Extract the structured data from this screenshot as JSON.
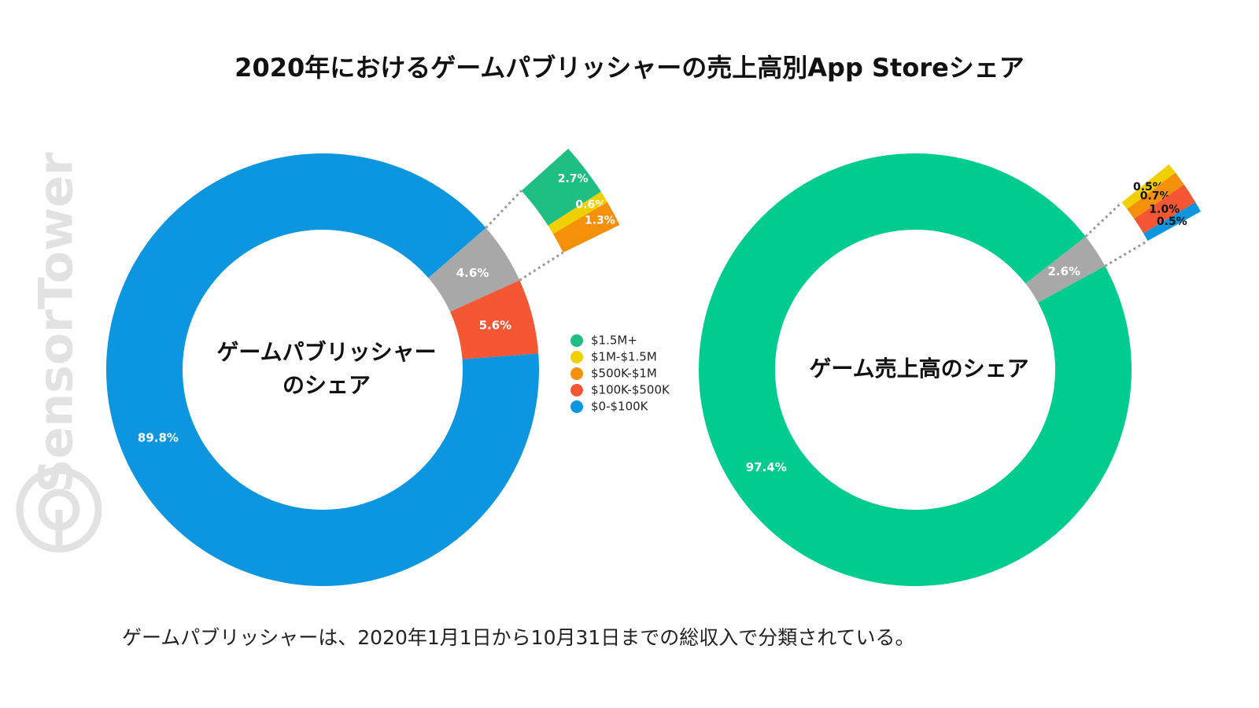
{
  "title": "2020年におけるゲームパブリッシャーの売上高別App Storeシェア",
  "watermark": "SensorTower",
  "footnote": "ゲームパブリッシャーは、2020年1月1日から10月31日までの総収入で分類されている。",
  "chart_data": [
    {
      "type": "donut",
      "center_label": [
        "ゲームパブリッシャー",
        "のシェア"
      ],
      "values": [
        5.6,
        89.8
      ],
      "value_labels": [
        "5.6%",
        "89.8%"
      ],
      "colors": [
        "#f55634",
        "#0c96e0"
      ],
      "detail": {
        "total": 4.6,
        "total_label": "4.6%",
        "total_color": "#a8a8a8",
        "values": [
          2.7,
          0.6,
          1.3
        ],
        "value_labels": [
          "2.7%",
          "0.6%",
          "1.3%"
        ],
        "colors": [
          "#1fbf84",
          "#f0d000",
          "#f5900a"
        ]
      },
      "legend": {
        "names": [
          "$1.5M+",
          "$1M-$1.5M",
          "$500K-$1M",
          "$100K-$500K",
          "$0-$100K"
        ],
        "colors": [
          "#1fbf84",
          "#f0d000",
          "#f5900a",
          "#f55634",
          "#0c96e0"
        ]
      }
    },
    {
      "type": "donut",
      "center_label": [
        "ゲーム売上高のシェア"
      ],
      "values": [
        97.4
      ],
      "value_labels": [
        "97.4%"
      ],
      "colors": [
        "#00cc8f"
      ],
      "detail": {
        "total": 2.6,
        "total_label": "2.6%",
        "total_color": "#a8a8a8",
        "values": [
          0.5,
          0.7,
          1.0,
          0.5
        ],
        "value_labels": [
          "0.5%",
          "0.7%",
          "1.0%",
          "0.5%"
        ],
        "colors": [
          "#f0d000",
          "#f5900a",
          "#f55634",
          "#0c96e0"
        ]
      }
    }
  ]
}
